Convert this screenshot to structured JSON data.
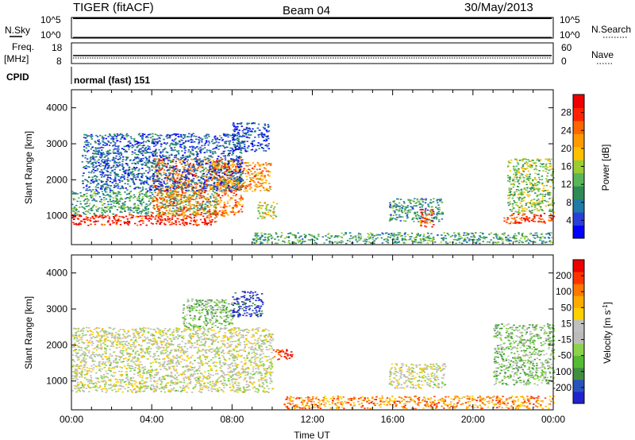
{
  "header": {
    "title": "TIGER (fitACF)",
    "beam": "Beam 04",
    "date": "30/May/2013"
  },
  "nsky_panel": {
    "left_label": "N.Sky",
    "left_ticks": [
      "10^5",
      "10^0"
    ],
    "right_ticks": [
      "10^5",
      "10^0"
    ],
    "right_label": "N.Search"
  },
  "freq_panel": {
    "left_label_1": "Freq.",
    "left_label_2": "[MHz]",
    "left_ticks": [
      "18",
      "8"
    ],
    "right_ticks": [
      "60",
      "0"
    ],
    "right_label": "Nave"
  },
  "cpid_panel": {
    "label": "CPID",
    "mode": "normal (fast) 151"
  },
  "colors": {
    "background": "#ffffff",
    "power_scale": [
      "#0000ff",
      "#2a3fd8",
      "#1f7aa8",
      "#2e8b57",
      "#58b558",
      "#9acd32",
      "#ffc000",
      "#ff9900",
      "#ff6600",
      "#ff2200",
      "#ee0000"
    ],
    "velocity_scale": [
      "#2222cc",
      "#2a52be",
      "#3f8f3f",
      "#55bb33",
      "#8cd24b",
      "#bcbcbc",
      "#c0c0c0",
      "#ffd000",
      "#ffaa00",
      "#ff7700",
      "#ff3300",
      "#ee0000"
    ]
  },
  "chart_data": [
    {
      "type": "heatmap",
      "name": "power",
      "xlabel": "Time UT",
      "ylabel": "Slant Range [km]",
      "x_ticks": [
        "00:00",
        "04:00",
        "08:00",
        "12:00",
        "16:00",
        "20:00",
        "00:00"
      ],
      "y_ticks": [
        1000,
        2000,
        3000,
        4000
      ],
      "ylim": [
        200,
        4500
      ],
      "xlim_hours": [
        0,
        24
      ],
      "colorbar": {
        "label": "Power [dB]",
        "ticks": [
          4,
          8,
          12,
          16,
          20,
          24,
          28
        ]
      },
      "regions": [
        {
          "t0": 0.0,
          "t1": 7.2,
          "r0": 750,
          "r1": 1050,
          "level": 0.9
        },
        {
          "t0": 0.0,
          "t1": 7.2,
          "r0": 1050,
          "r1": 1700,
          "level": 0.35
        },
        {
          "t0": 4.0,
          "t1": 8.5,
          "r0": 1000,
          "r1": 2600,
          "level": 0.75
        },
        {
          "t0": 7.0,
          "t1": 9.9,
          "r0": 1700,
          "r1": 2500,
          "level": 0.7
        },
        {
          "t0": 9.2,
          "t1": 10.2,
          "r0": 950,
          "r1": 1400,
          "level": 0.55
        },
        {
          "t0": 0.5,
          "t1": 8.5,
          "r0": 1700,
          "r1": 3300,
          "level": 0.2
        },
        {
          "t0": 8.0,
          "t1": 9.8,
          "r0": 2800,
          "r1": 3600,
          "level": 0.15
        },
        {
          "t0": 15.8,
          "t1": 18.5,
          "r0": 850,
          "r1": 1500,
          "level": 0.3
        },
        {
          "t0": 17.3,
          "t1": 18.0,
          "r0": 700,
          "r1": 1200,
          "level": 0.85
        },
        {
          "t0": 21.5,
          "t1": 24.0,
          "r0": 800,
          "r1": 1100,
          "level": 0.85
        },
        {
          "t0": 21.7,
          "t1": 24.0,
          "r0": 1100,
          "r1": 2600,
          "level": 0.45
        },
        {
          "t0": 9.0,
          "t1": 24.0,
          "r0": 250,
          "r1": 550,
          "level": 0.35
        }
      ]
    },
    {
      "type": "heatmap",
      "name": "velocity",
      "xlabel": "Time UT",
      "ylabel": "Slant Range [km]",
      "x_ticks": [
        "00:00",
        "04:00",
        "08:00",
        "12:00",
        "16:00",
        "20:00",
        "00:00"
      ],
      "y_ticks": [
        1000,
        2000,
        3000,
        4000
      ],
      "ylim": [
        200,
        4500
      ],
      "xlim_hours": [
        0,
        24
      ],
      "colorbar": {
        "label_main": "Velocity [m s",
        "label_exp": "-1",
        "label_end": "]",
        "ticks": [
          200,
          100,
          50,
          15,
          -15,
          -50,
          -100,
          -200
        ]
      },
      "regions": [
        {
          "t0": 0.0,
          "t1": 10.0,
          "r0": 700,
          "r1": 2500,
          "level": 0.5
        },
        {
          "t0": 5.5,
          "t1": 8.0,
          "r0": 2500,
          "r1": 3300,
          "level": 0.35
        },
        {
          "t0": 8.0,
          "t1": 9.5,
          "r0": 2800,
          "r1": 3500,
          "level": 0.05
        },
        {
          "t0": 10.0,
          "t1": 11.0,
          "r0": 1600,
          "r1": 1900,
          "level": 0.95
        },
        {
          "t0": 15.8,
          "t1": 18.6,
          "r0": 800,
          "r1": 1500,
          "level": 0.5
        },
        {
          "t0": 21.0,
          "t1": 24.0,
          "r0": 900,
          "r1": 2600,
          "level": 0.35
        },
        {
          "t0": 10.5,
          "t1": 24.0,
          "r0": 250,
          "r1": 600,
          "level": 0.75
        }
      ]
    }
  ]
}
